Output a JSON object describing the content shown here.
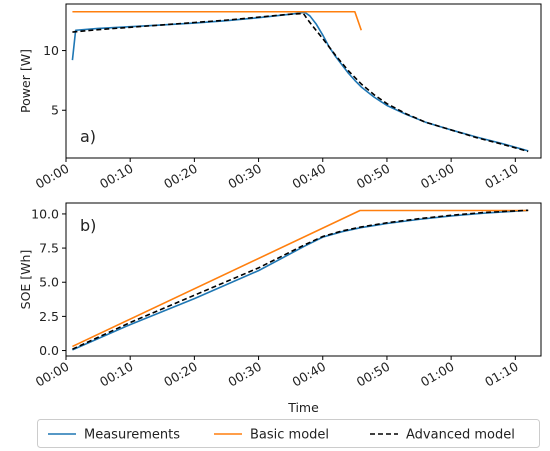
{
  "chart_data": [
    {
      "type": "line",
      "panel_label": "a)",
      "ylabel": "Power [W]",
      "xlabel": "",
      "xlim_min": [
        0,
        74
      ],
      "ylim": [
        1.0,
        13.9
      ],
      "yticks": [
        5,
        10
      ],
      "xticks_min": [
        0,
        10,
        20,
        30,
        40,
        50,
        60,
        70
      ],
      "xtick_labels": [
        "00:00",
        "00:10",
        "00:20",
        "00:30",
        "00:40",
        "00:50",
        "01:00",
        "01:10"
      ],
      "series": [
        {
          "name": "Measurements",
          "color": "#1f77b4",
          "dash": "",
          "points": [
            [
              1.0,
              9.2
            ],
            [
              1.5,
              11.7
            ],
            [
              5,
              11.85
            ],
            [
              10,
              12.0
            ],
            [
              15,
              12.15
            ],
            [
              20,
              12.3
            ],
            [
              25,
              12.5
            ],
            [
              30,
              12.75
            ],
            [
              35,
              13.05
            ],
            [
              37.2,
              13.2
            ],
            [
              38,
              12.9
            ],
            [
              39,
              12.2
            ],
            [
              40,
              11.3
            ],
            [
              41,
              10.3
            ],
            [
              42,
              9.5
            ],
            [
              43,
              8.8
            ],
            [
              44,
              8.1
            ],
            [
              45,
              7.5
            ],
            [
              46,
              6.95
            ],
            [
              48,
              6.1
            ],
            [
              50,
              5.4
            ],
            [
              53,
              4.65
            ],
            [
              56,
              4.0
            ],
            [
              60,
              3.35
            ],
            [
              64,
              2.75
            ],
            [
              68,
              2.2
            ],
            [
              71,
              1.75
            ],
            [
              72,
              1.6
            ]
          ]
        },
        {
          "name": "Basic model",
          "color": "#ff7f0e",
          "dash": "",
          "points": [
            [
              1.0,
              13.25
            ],
            [
              45.0,
              13.25
            ],
            [
              46.0,
              11.7
            ]
          ]
        },
        {
          "name": "Advanced model",
          "color": "#000000",
          "dash": "5,3",
          "points": [
            [
              1.0,
              11.55
            ],
            [
              5,
              11.75
            ],
            [
              10,
              11.95
            ],
            [
              15,
              12.15
            ],
            [
              20,
              12.35
            ],
            [
              25,
              12.55
            ],
            [
              30,
              12.8
            ],
            [
              35,
              13.05
            ],
            [
              37.0,
              13.1
            ],
            [
              37.5,
              12.7
            ],
            [
              38.5,
              12.0
            ],
            [
              40,
              11.0
            ],
            [
              42,
              9.6
            ],
            [
              44,
              8.3
            ],
            [
              46,
              7.2
            ],
            [
              48,
              6.3
            ],
            [
              50,
              5.55
            ],
            [
              53,
              4.7
            ],
            [
              56,
              4.0
            ],
            [
              60,
              3.35
            ],
            [
              64,
              2.7
            ],
            [
              68,
              2.15
            ],
            [
              71,
              1.7
            ],
            [
              72,
              1.55
            ]
          ]
        }
      ]
    },
    {
      "type": "line",
      "panel_label": "b)",
      "ylabel": "SOE [Wh]",
      "xlabel": "Time",
      "xlim_min": [
        0,
        74
      ],
      "ylim": [
        -0.4,
        10.8
      ],
      "yticks": [
        0.0,
        2.5,
        5.0,
        7.5,
        10.0
      ],
      "ytick_labels": [
        "0.0",
        "2.5",
        "5.0",
        "7.5",
        "10.0"
      ],
      "xticks_min": [
        0,
        10,
        20,
        30,
        40,
        50,
        60,
        70
      ],
      "xtick_labels": [
        "00:00",
        "00:10",
        "00:20",
        "00:30",
        "00:40",
        "00:50",
        "01:00",
        "01:10"
      ],
      "series": [
        {
          "name": "Measurements",
          "color": "#1f77b4",
          "dash": "",
          "points": [
            [
              1.0,
              0.05
            ],
            [
              10,
              1.9
            ],
            [
              20,
              3.8
            ],
            [
              30,
              5.85
            ],
            [
              37,
              7.6
            ],
            [
              40,
              8.3
            ],
            [
              43,
              8.7
            ],
            [
              46,
              9.0
            ],
            [
              50,
              9.3
            ],
            [
              55,
              9.6
            ],
            [
              60,
              9.85
            ],
            [
              65,
              10.05
            ],
            [
              70,
              10.2
            ],
            [
              72,
              10.25
            ]
          ]
        },
        {
          "name": "Basic model",
          "color": "#ff7f0e",
          "dash": "",
          "points": [
            [
              1.0,
              0.3
            ],
            [
              45.8,
              10.25
            ],
            [
              72,
              10.25
            ]
          ]
        },
        {
          "name": "Advanced model",
          "color": "#000000",
          "dash": "5,3",
          "points": [
            [
              1.0,
              0.1
            ],
            [
              10,
              2.05
            ],
            [
              20,
              4.05
            ],
            [
              30,
              6.05
            ],
            [
              37,
              7.7
            ],
            [
              40,
              8.35
            ],
            [
              43,
              8.75
            ],
            [
              46,
              9.05
            ],
            [
              50,
              9.35
            ],
            [
              55,
              9.65
            ],
            [
              60,
              9.9
            ],
            [
              65,
              10.1
            ],
            [
              70,
              10.22
            ],
            [
              72,
              10.27
            ]
          ]
        }
      ]
    }
  ],
  "legend": {
    "placement": "bottom",
    "items": [
      {
        "label": "Measurements",
        "color": "#1f77b4",
        "dash": ""
      },
      {
        "label": "Basic model",
        "color": "#ff7f0e",
        "dash": ""
      },
      {
        "label": "Advanced model",
        "color": "#000000",
        "dash": "5,3"
      }
    ]
  }
}
